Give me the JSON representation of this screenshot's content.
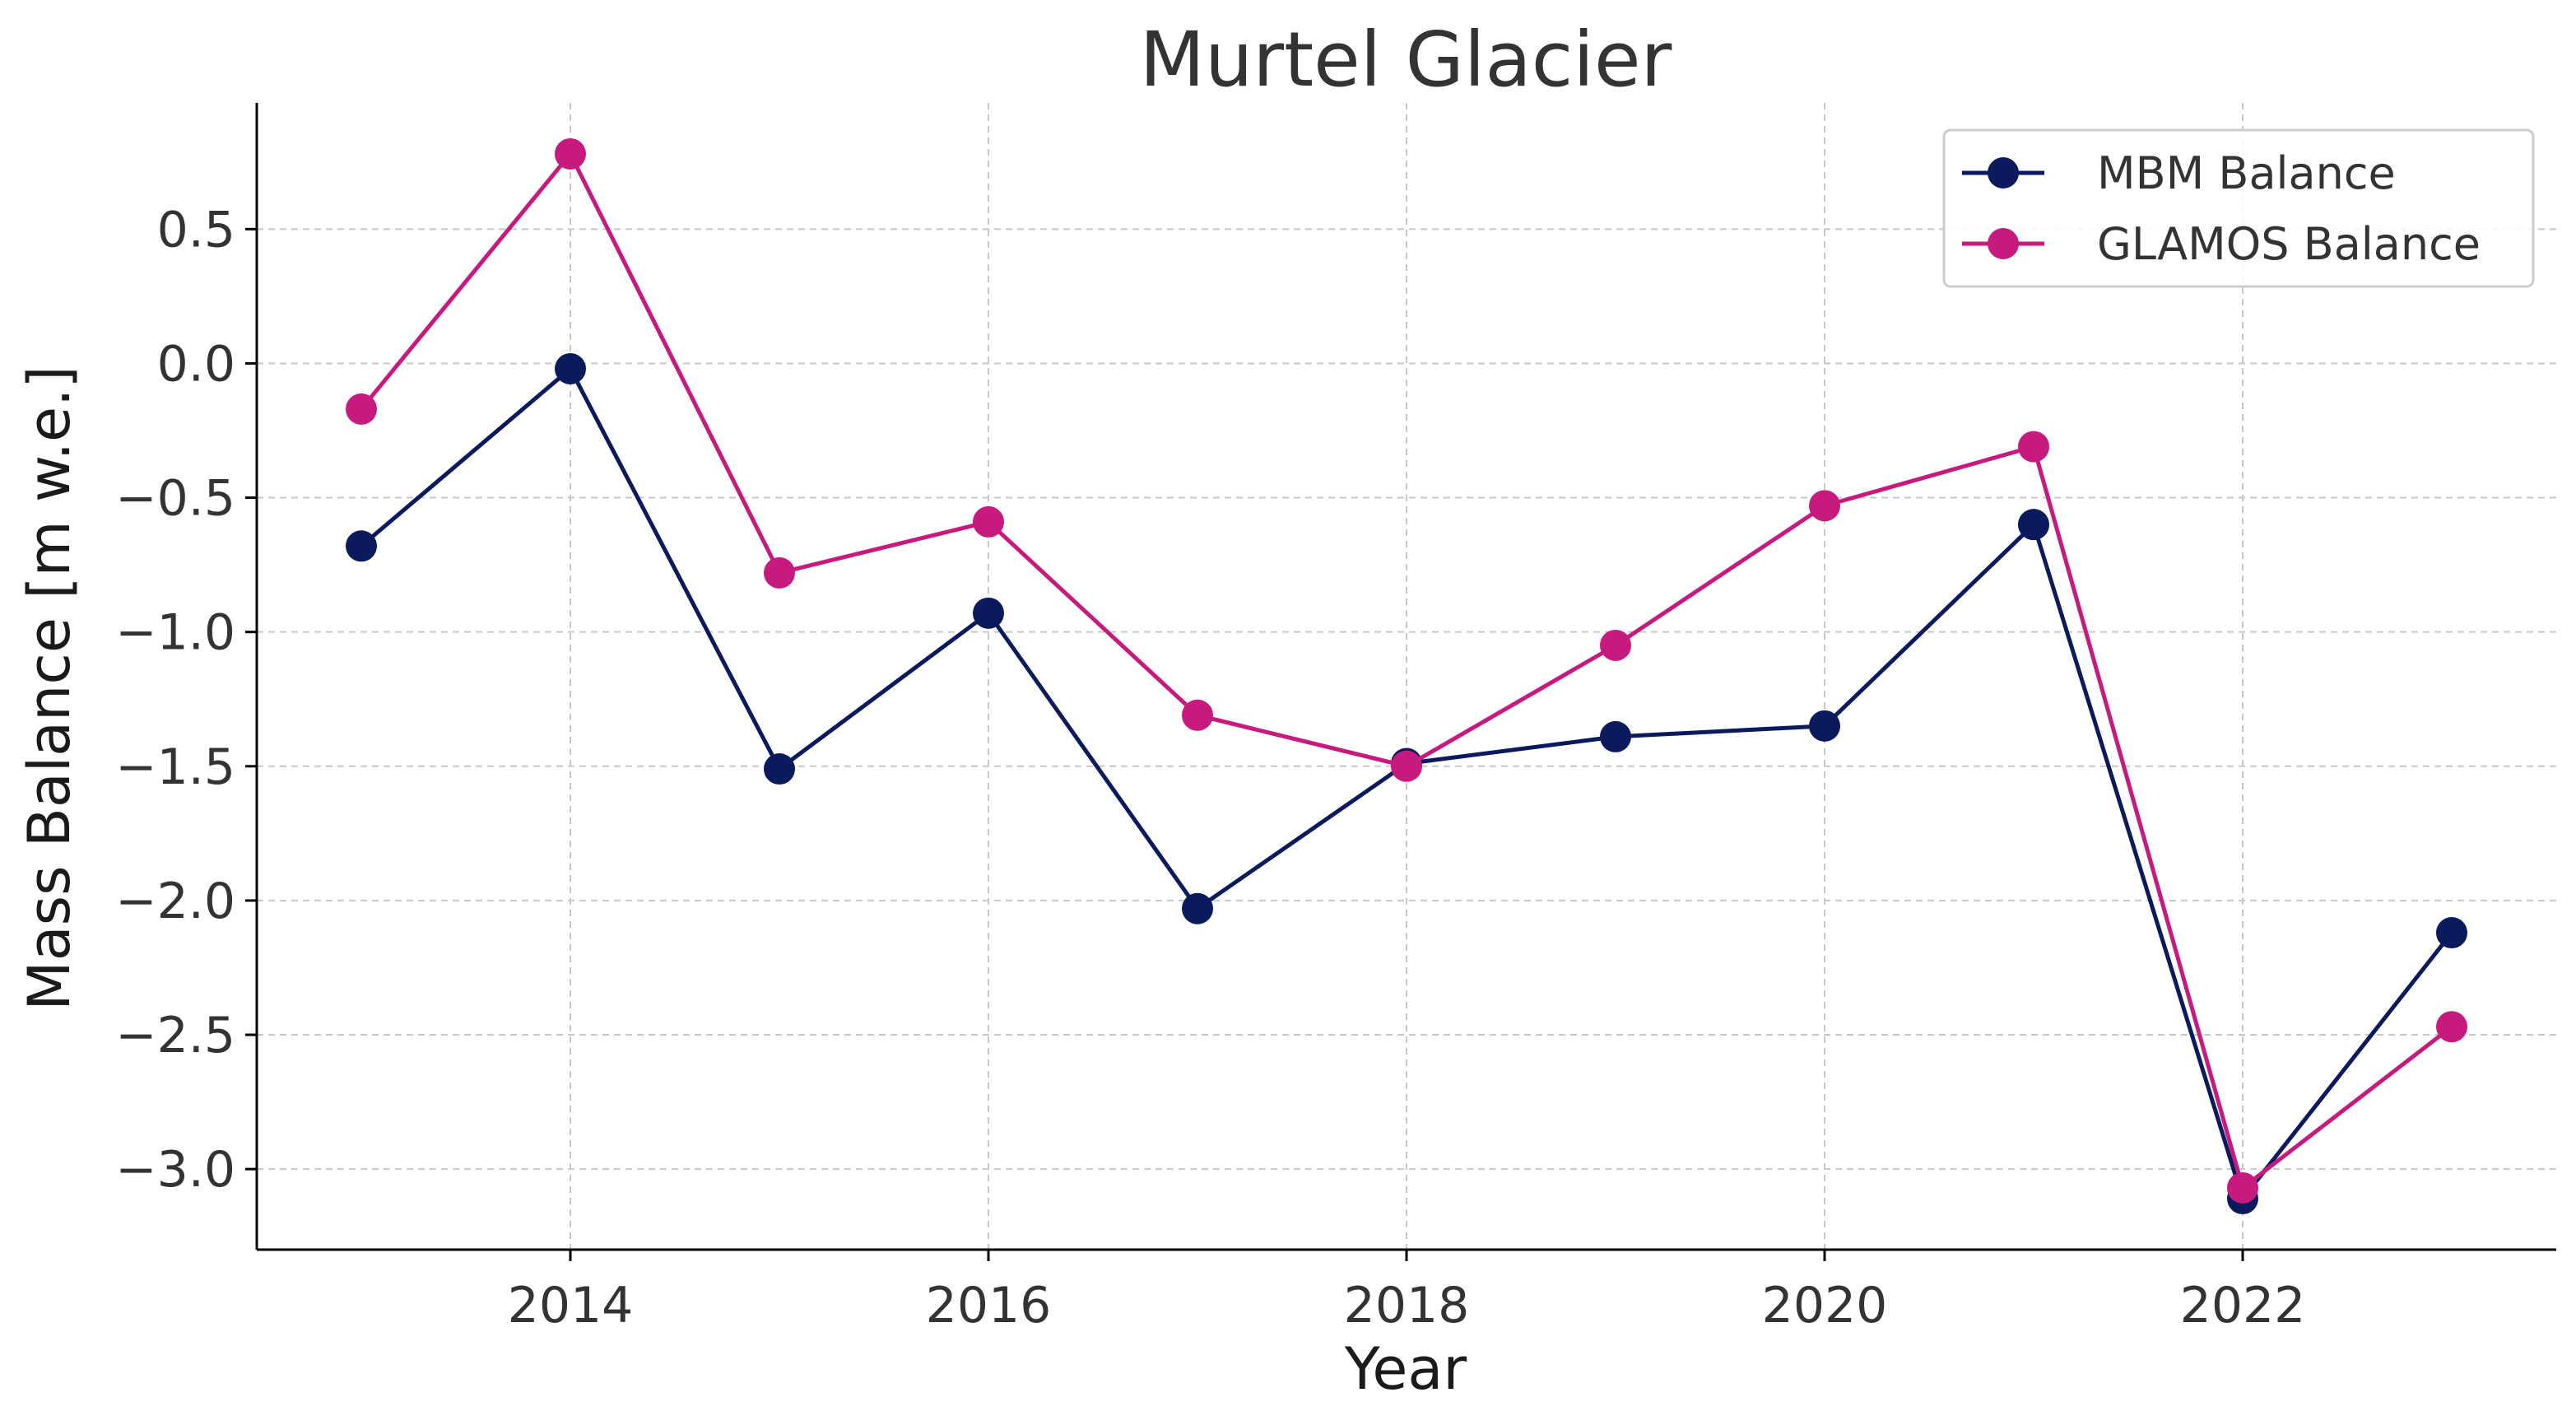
{
  "chart_data": {
    "type": "line",
    "title": "Murtel Glacier",
    "xlabel": "Year",
    "ylabel": "Mass Balance [m w.e.]",
    "xlim": [
      2012.5,
      2023.5
    ],
    "ylim": [
      -3.3,
      0.97
    ],
    "xticks": [
      2014,
      2016,
      2018,
      2020,
      2022
    ],
    "xtick_labels": [
      "2014",
      "2016",
      "2018",
      "2020",
      "2022"
    ],
    "yticks": [
      0.5,
      0.0,
      -0.5,
      -1.0,
      -1.5,
      -2.0,
      -2.5,
      -3.0
    ],
    "ytick_labels": [
      "0.5",
      "0.0",
      "−0.5",
      "−1.0",
      "−1.5",
      "−2.0",
      "−2.5",
      "−3.0"
    ],
    "grid": true,
    "legend_position": "top-right",
    "x": [
      2013,
      2014,
      2015,
      2016,
      2017,
      2018,
      2019,
      2020,
      2021,
      2022,
      2023
    ],
    "series": [
      {
        "name": "MBM Balance",
        "color": "#0a1a5c",
        "values": [
          -0.68,
          -0.02,
          -1.51,
          -0.93,
          -2.03,
          -1.49,
          -1.39,
          -1.35,
          -0.6,
          -3.11,
          -2.12
        ]
      },
      {
        "name": "GLAMOS Balance",
        "color": "#c71a7e",
        "values": [
          -0.17,
          0.78,
          -0.78,
          -0.59,
          -1.31,
          -1.5,
          -1.05,
          -0.53,
          -0.31,
          -3.07,
          -2.47
        ]
      }
    ]
  }
}
